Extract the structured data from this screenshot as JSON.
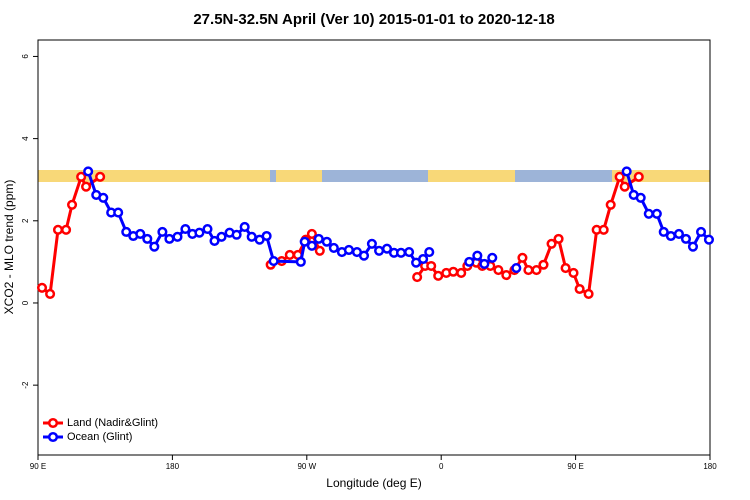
{
  "chart_data": {
    "type": "line",
    "title": "27.5N-32.5N April (Ver 10)   2015-01-01 to 2020-12-18",
    "xlabel": "Longitude (deg E)",
    "ylabel": "XCO2 - MLO trend (ppm)",
    "xlim": [
      90,
      540
    ],
    "xticks": [
      {
        "value": 90,
        "label": "90 E"
      },
      {
        "value": 180,
        "label": "180"
      },
      {
        "value": 270,
        "label": "90 W"
      },
      {
        "value": 360,
        "label": "0"
      },
      {
        "value": 450,
        "label": "90 E"
      },
      {
        "value": 540,
        "label": "180"
      }
    ],
    "ylim": [
      -3.7,
      6.4
    ],
    "yticks": [
      -2,
      0,
      2,
      4,
      6
    ],
    "legend": "bottomleft",
    "series": [
      {
        "name": "Land (Nadir&Glint)",
        "color": "#ff0000",
        "x": [
          92.7,
          98.1,
          103.4,
          108.8,
          112.8,
          118.9,
          122.2,
          131.6,
          null,
          245.8,
          253.2,
          258.6,
          264.0,
          269.3,
          273.4,
          278.7,
          null,
          343.9,
          349.2,
          353.3,
          358.0,
          363.4,
          368.1,
          373.4,
          377.5,
          383.5,
          387.5,
          392.9,
          398.3,
          403.6,
          409.0,
          414.4,
          418.4,
          423.8,
          428.5,
          433.9,
          438.6,
          443.3,
          448.6,
          452.7,
          458.7,
          464.1,
          468.8,
          473.5,
          479.5,
          482.9,
          492.3
        ],
        "values": [
          0.37,
          0.22,
          1.78,
          1.78,
          2.39,
          3.07,
          2.83,
          3.07,
          null,
          0.93,
          1.02,
          1.17,
          1.17,
          1.54,
          1.68,
          1.27,
          null,
          0.63,
          0.9,
          0.9,
          0.66,
          0.73,
          0.76,
          0.73,
          0.9,
          0.98,
          0.9,
          0.9,
          0.8,
          0.68,
          0.8,
          1.1,
          0.8,
          0.8,
          0.93,
          1.44,
          1.56,
          0.85,
          0.73,
          0.34,
          0.22,
          1.78,
          1.78,
          2.39,
          3.07,
          2.83,
          3.07
        ]
      },
      {
        "name": "Ocean (Glint)",
        "color": "#0000ff",
        "x": [
          123.6,
          129.0,
          133.7,
          139.0,
          143.7,
          149.1,
          153.8,
          158.5,
          163.2,
          167.9,
          173.3,
          178.0,
          183.4,
          188.7,
          193.4,
          198.1,
          203.5,
          208.2,
          212.9,
          218.3,
          223.0,
          228.4,
          233.1,
          238.4,
          243.1,
          247.8,
          266.0,
          268.6,
          273.4,
          278.0,
          283.4,
          288.1,
          293.5,
          298.2,
          303.6,
          308.3,
          313.6,
          318.4,
          323.7,
          328.4,
          333.1,
          338.5,
          343.2,
          347.9,
          352.0,
          null,
          378.8,
          384.2,
          388.9,
          394.2,
          null,
          410.3,
          null,
          484.2,
          488.9,
          493.6,
          499.0,
          504.4,
          509.0,
          513.8,
          519.2,
          523.9,
          528.6,
          534.0,
          539.3
        ],
        "values": [
          3.2,
          2.63,
          2.56,
          2.2,
          2.2,
          1.73,
          1.63,
          1.68,
          1.56,
          1.37,
          1.73,
          1.56,
          1.61,
          1.8,
          1.68,
          1.71,
          1.8,
          1.51,
          1.61,
          1.71,
          1.66,
          1.85,
          1.61,
          1.54,
          1.63,
          1.02,
          1.0,
          1.49,
          1.39,
          1.56,
          1.49,
          1.34,
          1.24,
          1.29,
          1.24,
          1.15,
          1.44,
          1.27,
          1.32,
          1.22,
          1.22,
          1.24,
          0.98,
          1.07,
          1.24,
          null,
          1.0,
          1.15,
          0.95,
          1.1,
          null,
          0.85,
          null,
          3.2,
          2.63,
          2.56,
          2.17,
          2.17,
          1.73,
          1.63,
          1.68,
          1.56,
          1.37,
          1.73,
          1.54
        ]
      }
    ]
  }
}
